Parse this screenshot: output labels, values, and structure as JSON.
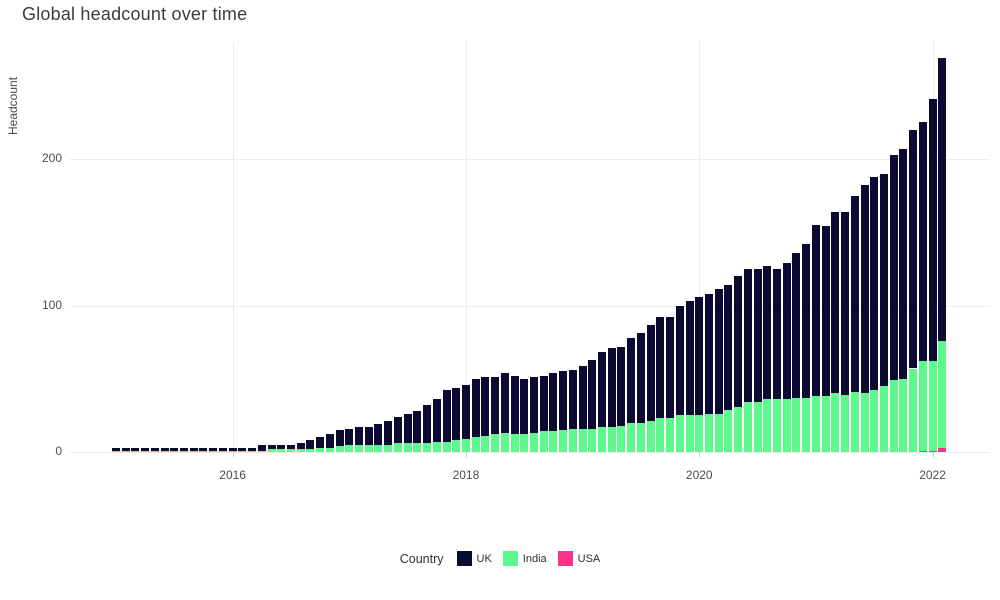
{
  "title": "Global headcount over time",
  "chart_data": {
    "type": "bar",
    "stacked": true,
    "title": "Global headcount over time",
    "xlabel": "",
    "ylabel": "Headcount",
    "legend_title": "Country",
    "legend_position": "bottom",
    "grid": true,
    "background": "#ffffff",
    "gridline_color": "#ececec",
    "text_color": "#4d4d4d",
    "y_ticks": [
      0,
      100,
      200
    ],
    "ylim": [
      0,
      278
    ],
    "x_tick_labels": [
      "2016",
      "2018",
      "2020",
      "2022"
    ],
    "x_tick_month_indices": [
      12,
      36,
      60,
      84
    ],
    "stack_order_bottom_to_top": [
      "USA",
      "India",
      "UK"
    ],
    "months": [
      "2015-01",
      "2015-02",
      "2015-03",
      "2015-04",
      "2015-05",
      "2015-06",
      "2015-07",
      "2015-08",
      "2015-09",
      "2015-10",
      "2015-11",
      "2015-12",
      "2016-01",
      "2016-02",
      "2016-03",
      "2016-04",
      "2016-05",
      "2016-06",
      "2016-07",
      "2016-08",
      "2016-09",
      "2016-10",
      "2016-11",
      "2016-12",
      "2017-01",
      "2017-02",
      "2017-03",
      "2017-04",
      "2017-05",
      "2017-06",
      "2017-07",
      "2017-08",
      "2017-09",
      "2017-10",
      "2017-11",
      "2017-12",
      "2018-01",
      "2018-02",
      "2018-03",
      "2018-04",
      "2018-05",
      "2018-06",
      "2018-07",
      "2018-08",
      "2018-09",
      "2018-10",
      "2018-11",
      "2018-12",
      "2019-01",
      "2019-02",
      "2019-03",
      "2019-04",
      "2019-05",
      "2019-06",
      "2019-07",
      "2019-08",
      "2019-09",
      "2019-10",
      "2019-11",
      "2019-12",
      "2020-01",
      "2020-02",
      "2020-03",
      "2020-04",
      "2020-05",
      "2020-06",
      "2020-07",
      "2020-08",
      "2020-09",
      "2020-10",
      "2020-11",
      "2020-12",
      "2021-01",
      "2021-02",
      "2021-03",
      "2021-04",
      "2021-05",
      "2021-06",
      "2021-07",
      "2021-08",
      "2021-09",
      "2021-10",
      "2021-11",
      "2021-12",
      "2022-01",
      "2022-02"
    ],
    "series": [
      {
        "name": "UK",
        "color": "#0a0a32",
        "values": [
          2,
          2,
          2,
          2,
          2,
          2,
          2,
          2,
          2,
          2,
          2,
          2,
          2,
          2,
          2,
          4,
          3,
          3,
          3,
          4,
          6,
          7,
          9,
          11,
          11,
          12,
          12,
          14,
          16,
          18,
          20,
          22,
          26,
          29,
          35,
          36,
          37,
          40,
          40,
          39,
          41,
          40,
          38,
          38,
          38,
          40,
          40,
          40,
          43,
          47,
          51,
          54,
          54,
          58,
          61,
          66,
          69,
          69,
          75,
          78,
          81,
          82,
          85,
          85,
          89,
          91,
          91,
          91,
          89,
          93,
          99,
          105,
          117,
          116,
          124,
          125,
          134,
          142,
          146,
          145,
          154,
          157,
          163,
          163,
          179,
          193
        ]
      },
      {
        "name": "India",
        "color": "#5ef98c",
        "values": [
          1,
          1,
          1,
          1,
          1,
          1,
          1,
          1,
          1,
          1,
          1,
          1,
          1,
          1,
          1,
          1,
          2,
          2,
          2,
          2,
          2,
          3,
          3,
          4,
          5,
          5,
          5,
          5,
          5,
          6,
          6,
          6,
          6,
          7,
          7,
          8,
          9,
          10,
          11,
          12,
          13,
          12,
          12,
          13,
          14,
          14,
          15,
          16,
          16,
          16,
          17,
          17,
          18,
          20,
          20,
          21,
          23,
          23,
          25,
          25,
          25,
          26,
          26,
          29,
          31,
          34,
          34,
          36,
          36,
          36,
          37,
          37,
          38,
          38,
          40,
          39,
          41,
          40,
          42,
          45,
          49,
          50,
          57,
          61,
          61,
          73
        ]
      },
      {
        "name": "USA",
        "color": "#f9348b",
        "values": [
          0,
          0,
          0,
          0,
          0,
          0,
          0,
          0,
          0,
          0,
          0,
          0,
          0,
          0,
          0,
          0,
          0,
          0,
          0,
          0,
          0,
          0,
          0,
          0,
          0,
          0,
          0,
          0,
          0,
          0,
          0,
          0,
          0,
          0,
          0,
          0,
          0,
          0,
          0,
          0,
          0,
          0,
          0,
          0,
          0,
          0,
          0,
          0,
          0,
          0,
          0,
          0,
          0,
          0,
          0,
          0,
          0,
          0,
          0,
          0,
          0,
          0,
          0,
          0,
          0,
          0,
          0,
          0,
          0,
          0,
          0,
          0,
          0,
          0,
          0,
          0,
          0,
          0,
          0,
          0,
          0,
          0,
          0,
          1,
          1,
          3
        ]
      }
    ]
  }
}
